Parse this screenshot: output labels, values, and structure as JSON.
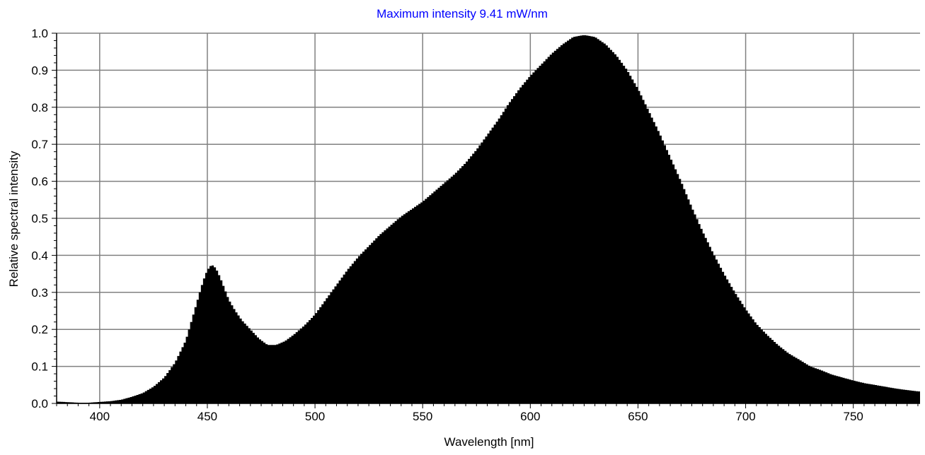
{
  "chart_data": {
    "type": "area",
    "title": "Maximum intensity 9.41 mW/nm",
    "title_color": "#0000ff",
    "xlabel": "Wavelength [nm]",
    "ylabel": "Relative spectral intensity",
    "xlim": [
      380,
      781
    ],
    "ylim": [
      0,
      1.0
    ],
    "xticks": [
      400,
      450,
      500,
      550,
      600,
      650,
      700,
      750
    ],
    "yticks": [
      0.0,
      0.1,
      0.2,
      0.3,
      0.4,
      0.5,
      0.6,
      0.7,
      0.8,
      0.9,
      1.0
    ],
    "grid": true,
    "fill_color": "#000000",
    "grid_color": "#808080",
    "series": [
      {
        "x": [
          380,
          390,
          395,
          400,
          405,
          410,
          415,
          420,
          425,
          430,
          435,
          440,
          443,
          446,
          448,
          450,
          452,
          454,
          456,
          458,
          460,
          463,
          466,
          470,
          474,
          478,
          482,
          486,
          490,
          495,
          500,
          505,
          510,
          515,
          520,
          525,
          530,
          535,
          540,
          545,
          550,
          555,
          560,
          565,
          570,
          575,
          580,
          585,
          590,
          595,
          600,
          605,
          610,
          615,
          620,
          625,
          630,
          635,
          640,
          645,
          650,
          655,
          660,
          665,
          670,
          675,
          680,
          685,
          690,
          695,
          700,
          705,
          710,
          715,
          720,
          725,
          730,
          735,
          740,
          745,
          750,
          755,
          760,
          765,
          770,
          775,
          781
        ],
        "y": [
          0.005,
          0.002,
          0.002,
          0.004,
          0.006,
          0.01,
          0.018,
          0.028,
          0.045,
          0.07,
          0.11,
          0.17,
          0.23,
          0.29,
          0.33,
          0.36,
          0.375,
          0.365,
          0.34,
          0.31,
          0.28,
          0.25,
          0.225,
          0.2,
          0.175,
          0.158,
          0.158,
          0.168,
          0.185,
          0.21,
          0.24,
          0.28,
          0.32,
          0.36,
          0.395,
          0.425,
          0.455,
          0.48,
          0.505,
          0.525,
          0.545,
          0.57,
          0.595,
          0.62,
          0.65,
          0.685,
          0.725,
          0.765,
          0.81,
          0.85,
          0.885,
          0.915,
          0.945,
          0.97,
          0.99,
          0.995,
          0.99,
          0.97,
          0.94,
          0.9,
          0.85,
          0.79,
          0.73,
          0.665,
          0.6,
          0.53,
          0.465,
          0.405,
          0.35,
          0.3,
          0.255,
          0.215,
          0.185,
          0.158,
          0.135,
          0.118,
          0.1,
          0.09,
          0.078,
          0.07,
          0.062,
          0.055,
          0.05,
          0.045,
          0.04,
          0.036,
          0.032
        ]
      }
    ]
  }
}
